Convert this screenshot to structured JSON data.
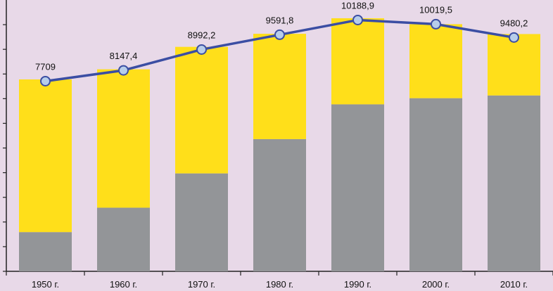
{
  "chart_data": {
    "type": "bar",
    "categories": [
      "1950 г.",
      "1960 г.",
      "1970 г.",
      "1980 г.",
      "1990 г.",
      "2000 г.",
      "2010 г."
    ],
    "series": [
      {
        "kind": "stacked-bar",
        "color": "#939598",
        "values": [
          1590,
          2580,
          3970,
          5360,
          6770,
          7020,
          7130
        ]
      },
      {
        "kind": "stacked-bar",
        "color": "#ffdf1a",
        "values": [
          6190,
          5610,
          5130,
          4270,
          3490,
          3000,
          2490
        ]
      },
      {
        "kind": "line",
        "color": "#3b4ea3",
        "values": [
          7709,
          8147.4,
          8992.2,
          9591.8,
          10188.9,
          10019.5,
          9480.2
        ]
      }
    ],
    "data_labels": [
      "7709",
      "8147,4",
      "8992,2",
      "9591,8",
      "10188,9",
      "10019,5",
      "9480,2"
    ],
    "ylim": [
      0,
      11000
    ],
    "y_gridlines": false,
    "y_tick_labels_shown": false,
    "title": "",
    "xlabel": "",
    "ylabel": ""
  }
}
